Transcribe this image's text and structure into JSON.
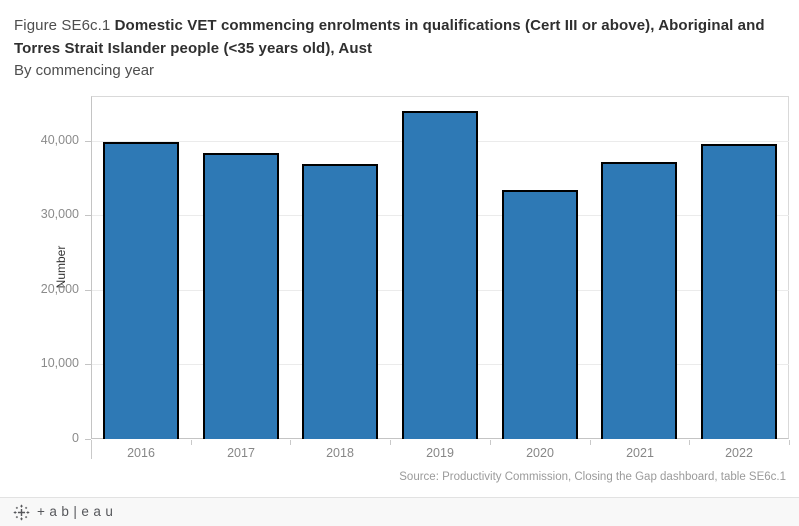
{
  "header": {
    "figure_label": "Figure SE6c.1 ",
    "title_bold": "Domestic VET commencing enrolments in qualifications (Cert III or above), Aboriginal and Torres Strait Islander people (<35 years old), Aust",
    "subtitle": "By commencing year"
  },
  "chart_data": {
    "type": "bar",
    "title": "Figure SE6c.1 Domestic VET commencing enrolments in qualifications (Cert III or above), Aboriginal and Torres Strait Islander people (<35 years old), Aust",
    "subtitle": "By commencing year",
    "categories": [
      "2016",
      "2017",
      "2018",
      "2019",
      "2020",
      "2021",
      "2022"
    ],
    "values": [
      39800,
      38400,
      36900,
      44000,
      33400,
      37100,
      39500
    ],
    "xlabel": "",
    "ylabel": "Number",
    "ylim": [
      0,
      46000
    ],
    "yticks": [
      0,
      10000,
      20000,
      30000,
      40000
    ],
    "ytick_labels": [
      "0",
      "10,000",
      "20,000",
      "30,000",
      "40,000"
    ],
    "grid": true,
    "legend": "none",
    "bar_color": "#2e79b5",
    "bar_border_color": "#000000"
  },
  "source_note": "Source: Productivity Commission, Closing the Gap dashboard, table SE6c.1",
  "footer": {
    "wordmark": "+ab|eau"
  }
}
